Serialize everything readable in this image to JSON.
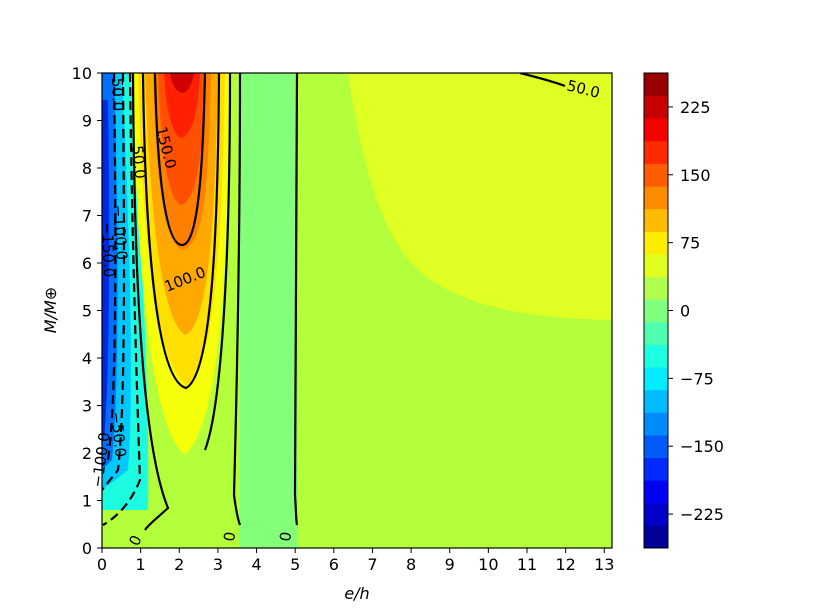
{
  "chart_data": {
    "type": "contour",
    "title": "",
    "xlabel": "e/h",
    "ylabel": "M/M⊕",
    "xlim": [
      0,
      13.2
    ],
    "ylim": [
      0,
      10
    ],
    "x_ticks": [
      "0",
      "1",
      "2",
      "3",
      "4",
      "5",
      "6",
      "7",
      "8",
      "9",
      "10",
      "11",
      "12",
      "13"
    ],
    "y_ticks": [
      "0",
      "1",
      "2",
      "3",
      "4",
      "5",
      "6",
      "7",
      "8",
      "9",
      "10"
    ],
    "colorbar": {
      "colormap": "jet",
      "range": [
        -262.5,
        262.5
      ],
      "ticks": [
        "−225",
        "−150",
        "−75",
        "0",
        "75",
        "150",
        "225"
      ],
      "levels": 21
    },
    "contour_line_labels": [
      "50.0",
      "150.0",
      "50.0",
      "100.0",
      "−100.0",
      "−150.0",
      "0",
      "0",
      "0",
      "50.0",
      "−100.0",
      "−150.0",
      "−50.0"
    ],
    "fill_colors": {
      "background": "#b4ff3c",
      "upper_right": "#e0ff22",
      "central_band": "#84ff7a",
      "neg_zone": "#1cfce0"
    }
  }
}
